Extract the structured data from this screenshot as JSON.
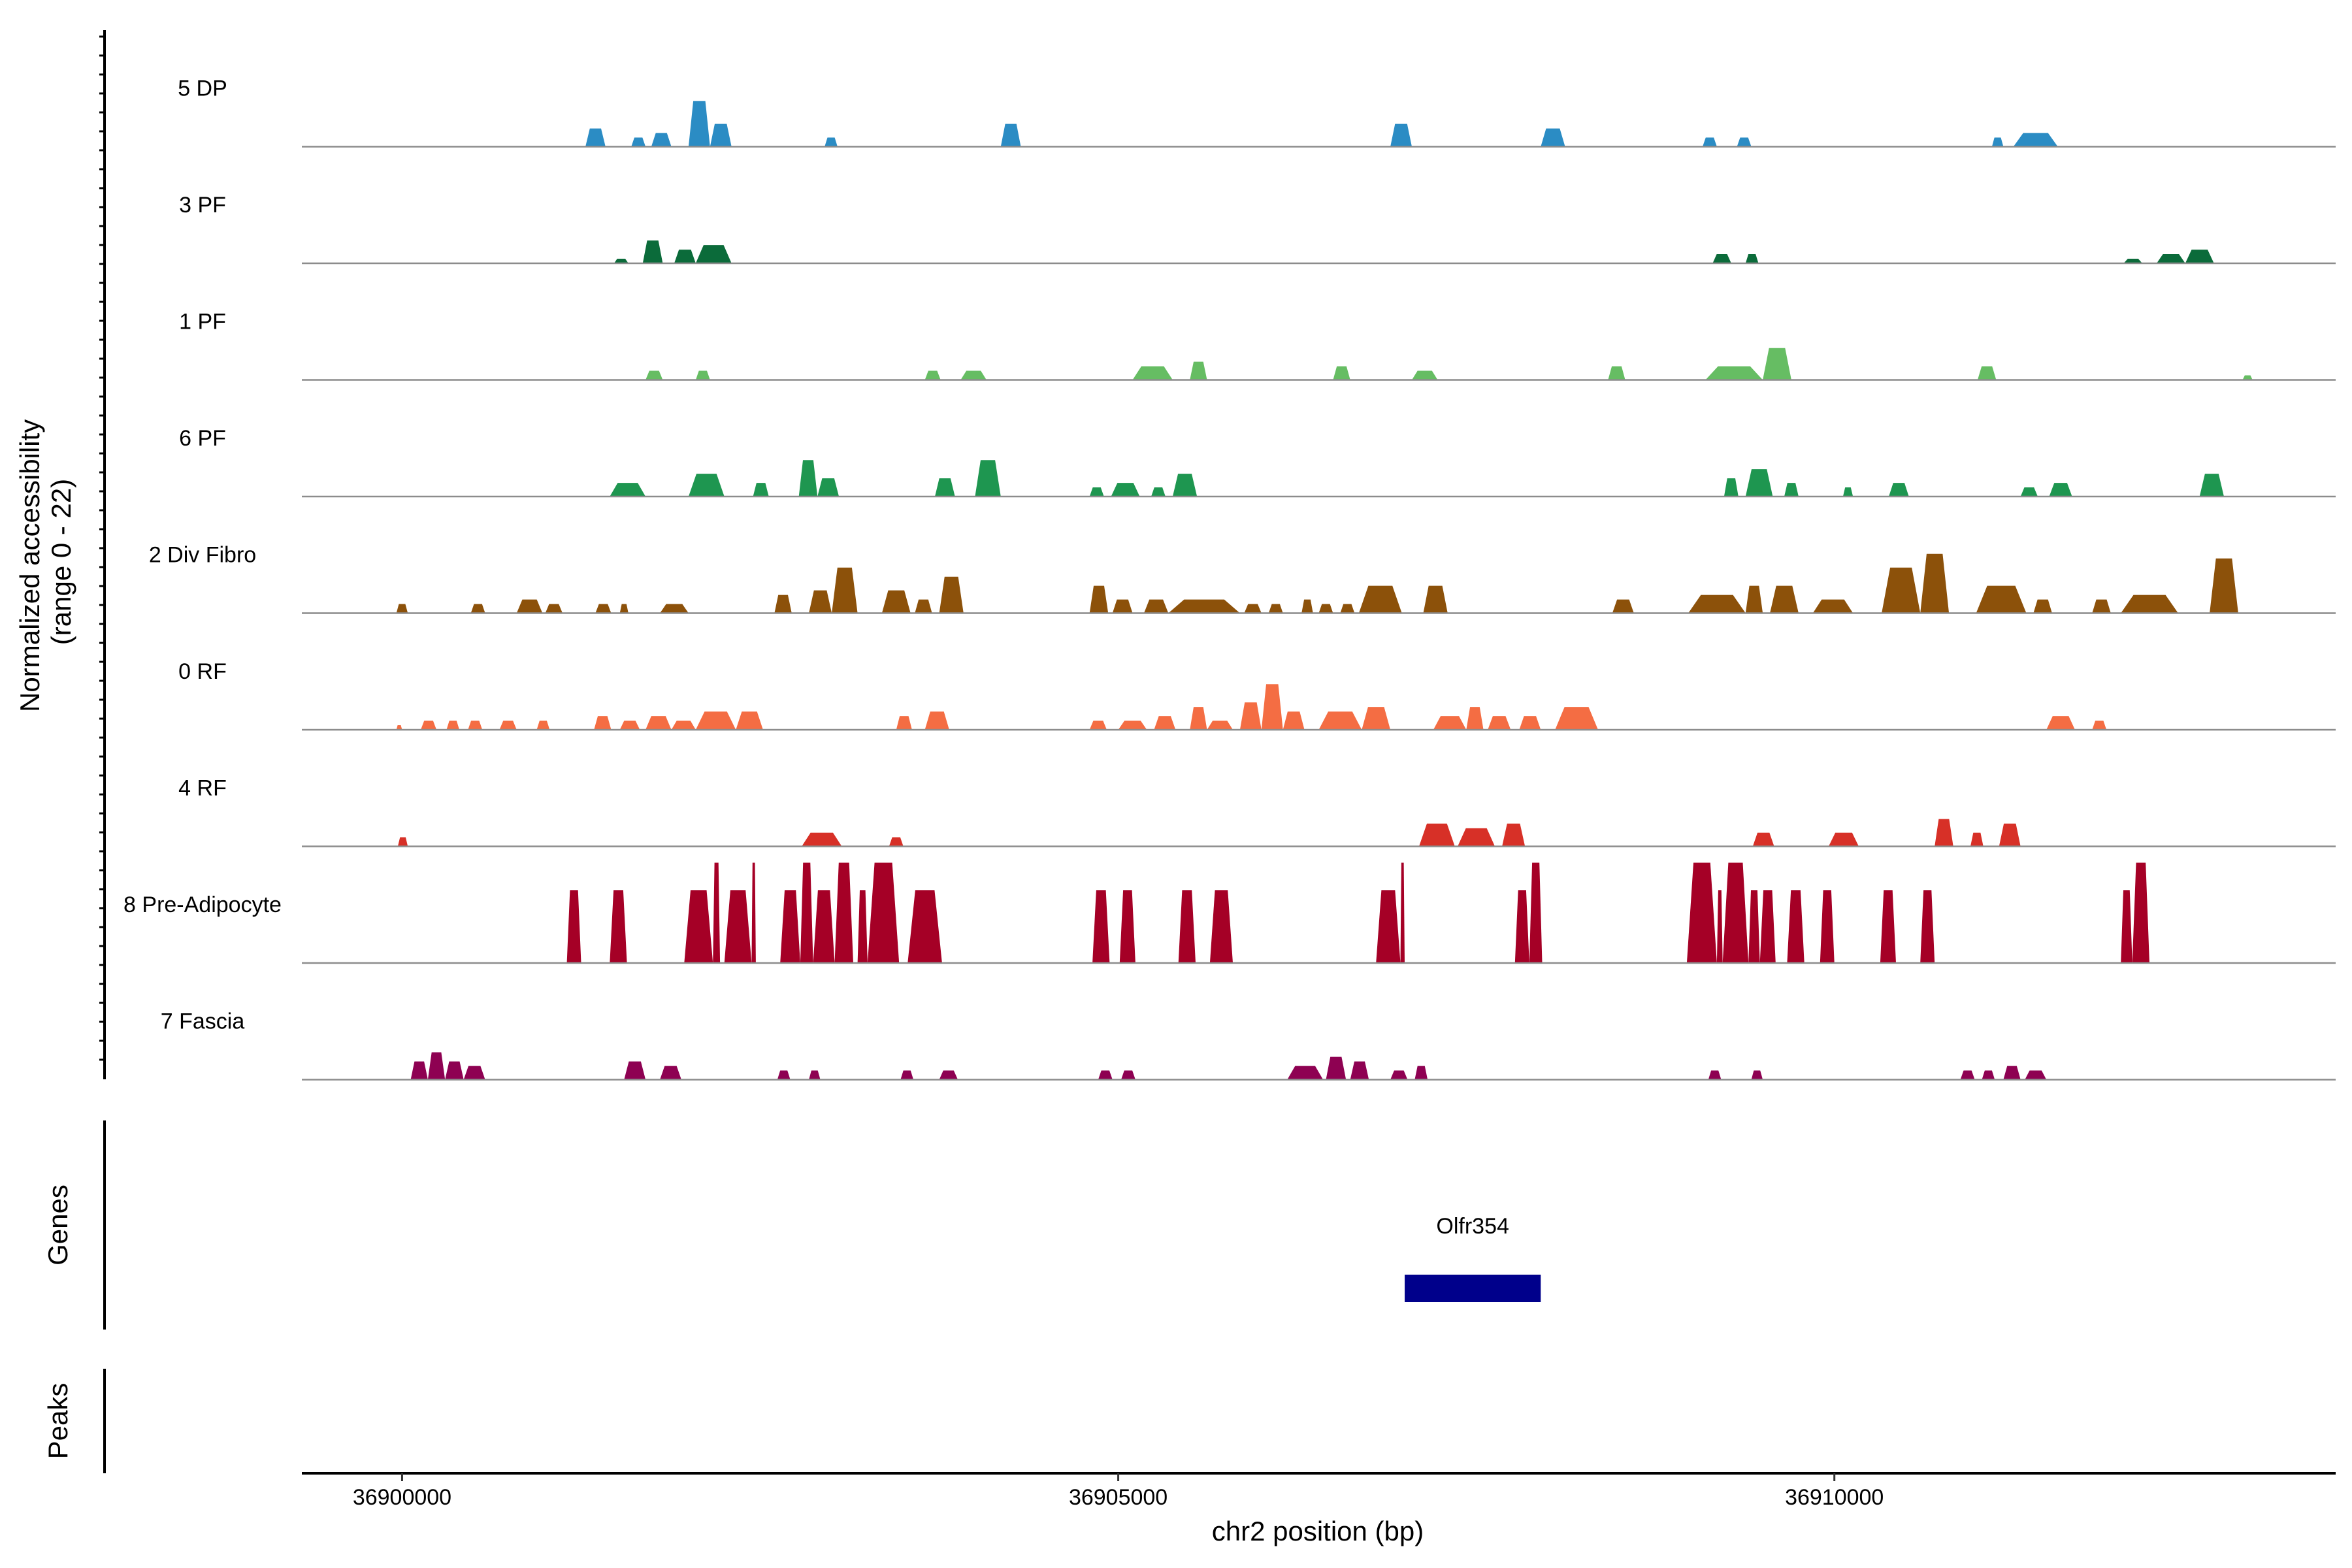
{
  "chart_data": {
    "type": "area",
    "title": "",
    "xlabel": "chr2 position (bp)",
    "ylabel_line1": "Normalized accessibility",
    "ylabel_line2": "(range 0 - 22)",
    "xlim": [
      36899300,
      36913500
    ],
    "ylim": [
      0,
      22
    ],
    "xticks": [
      {
        "value": 36900000,
        "label": "36900000"
      },
      {
        "value": 36905000,
        "label": "36905000"
      },
      {
        "value": 36910000,
        "label": "36910000"
      }
    ],
    "series": [
      {
        "name": "5 DP",
        "color": "#2b8cc4",
        "peaks": [
          [
            36901280,
            36901420,
            4
          ],
          [
            36901600,
            36901700,
            2
          ],
          [
            36901740,
            36901880,
            3
          ],
          [
            36902000,
            36902150,
            10
          ],
          [
            36902150,
            36902300,
            5
          ],
          [
            36902950,
            36903040,
            2
          ],
          [
            36904180,
            36904320,
            5
          ],
          [
            36906900,
            36907050,
            5
          ],
          [
            36907950,
            36908120,
            4
          ],
          [
            36909080,
            36909180,
            2
          ],
          [
            36909320,
            36909420,
            2
          ],
          [
            36911100,
            36911180,
            2
          ],
          [
            36911250,
            36911560,
            3
          ]
        ]
      },
      {
        "name": "3 PF",
        "color": "#0b6b3a",
        "peaks": [
          [
            36901480,
            36901580,
            1
          ],
          [
            36901680,
            36901820,
            5
          ],
          [
            36901900,
            36902050,
            3
          ],
          [
            36902050,
            36902300,
            4
          ],
          [
            36909150,
            36909280,
            2
          ],
          [
            36909380,
            36909470,
            2
          ],
          [
            36912020,
            36912150,
            1
          ],
          [
            36912250,
            36912450,
            2
          ],
          [
            36912450,
            36912650,
            3
          ]
        ]
      },
      {
        "name": "1 PF",
        "color": "#66bd63",
        "peaks": [
          [
            36901700,
            36901820,
            2
          ],
          [
            36902050,
            36902150,
            2
          ],
          [
            36903650,
            36903760,
            2
          ],
          [
            36903900,
            36904080,
            2
          ],
          [
            36905100,
            36905380,
            3
          ],
          [
            36905500,
            36905620,
            4
          ],
          [
            36906500,
            36906620,
            3
          ],
          [
            36907050,
            36907230,
            2
          ],
          [
            36908420,
            36908540,
            3
          ],
          [
            36909100,
            36909500,
            3
          ],
          [
            36909500,
            36909700,
            7
          ],
          [
            36911000,
            36911130,
            3
          ],
          [
            36912850,
            36912920,
            1
          ]
        ]
      },
      {
        "name": "6 PF",
        "color": "#1e9650",
        "peaks": [
          [
            36901450,
            36901700,
            3
          ],
          [
            36902000,
            36902250,
            5
          ],
          [
            36902450,
            36902560,
            3
          ],
          [
            36902770,
            36902900,
            8
          ],
          [
            36902900,
            36903050,
            4
          ],
          [
            36903720,
            36903860,
            4
          ],
          [
            36904000,
            36904180,
            8
          ],
          [
            36904800,
            36904900,
            2
          ],
          [
            36904950,
            36905150,
            3
          ],
          [
            36905230,
            36905330,
            2
          ],
          [
            36905380,
            36905550,
            5
          ],
          [
            36909230,
            36909330,
            4
          ],
          [
            36909380,
            36909570,
            6
          ],
          [
            36909650,
            36909750,
            3
          ],
          [
            36910060,
            36910130,
            2
          ],
          [
            36910380,
            36910520,
            3
          ],
          [
            36911300,
            36911420,
            2
          ],
          [
            36911500,
            36911660,
            3
          ],
          [
            36912550,
            36912720,
            5
          ]
        ]
      },
      {
        "name": "2 Div Fibro",
        "color": "#8c510a",
        "peaks": [
          [
            36899960,
            36900040,
            2
          ],
          [
            36900480,
            36900580,
            2
          ],
          [
            36900800,
            36900980,
            3
          ],
          [
            36901000,
            36901120,
            2
          ],
          [
            36901350,
            36901460,
            2
          ],
          [
            36901520,
            36901580,
            2
          ],
          [
            36901800,
            36902000,
            2
          ],
          [
            36902600,
            36902720,
            4
          ],
          [
            36902840,
            36903000,
            5
          ],
          [
            36903000,
            36903180,
            10
          ],
          [
            36903350,
            36903550,
            5
          ],
          [
            36903580,
            36903700,
            3
          ],
          [
            36903750,
            36903920,
            8
          ],
          [
            36904800,
            36904930,
            6
          ],
          [
            36904960,
            36905100,
            3
          ],
          [
            36905180,
            36905350,
            3
          ],
          [
            36905350,
            36905850,
            3
          ],
          [
            36905880,
            36906000,
            2
          ],
          [
            36906050,
            36906150,
            2
          ],
          [
            36906280,
            36906360,
            3
          ],
          [
            36906400,
            36906500,
            2
          ],
          [
            36906550,
            36906650,
            2
          ],
          [
            36906680,
            36906980,
            6
          ],
          [
            36907130,
            36907300,
            6
          ],
          [
            36908450,
            36908600,
            3
          ],
          [
            36908980,
            36909380,
            4
          ],
          [
            36909380,
            36909500,
            6
          ],
          [
            36909550,
            36909750,
            6
          ],
          [
            36909850,
            36910130,
            3
          ],
          [
            36910330,
            36910600,
            10
          ],
          [
            36910600,
            36910800,
            13
          ],
          [
            36910990,
            36911340,
            6
          ],
          [
            36911390,
            36911520,
            3
          ],
          [
            36911800,
            36911930,
            3
          ],
          [
            36912000,
            36912400,
            4
          ],
          [
            36912620,
            36912820,
            12
          ]
        ]
      },
      {
        "name": "0 RF",
        "color": "#f46d43",
        "peaks": [
          [
            36899960,
            36900000,
            1
          ],
          [
            36900130,
            36900240,
            2
          ],
          [
            36900310,
            36900400,
            2
          ],
          [
            36900460,
            36900560,
            2
          ],
          [
            36900680,
            36900800,
            2
          ],
          [
            36900940,
            36901030,
            2
          ],
          [
            36901340,
            36901460,
            3
          ],
          [
            36901520,
            36901660,
            2
          ],
          [
            36901700,
            36901880,
            3
          ],
          [
            36901880,
            36902050,
            2
          ],
          [
            36902050,
            36902330,
            4
          ],
          [
            36902330,
            36902520,
            4
          ],
          [
            36903450,
            36903560,
            3
          ],
          [
            36903650,
            36903820,
            4
          ],
          [
            36904800,
            36904920,
            2
          ],
          [
            36905000,
            36905200,
            2
          ],
          [
            36905250,
            36905400,
            3
          ],
          [
            36905500,
            36905620,
            5
          ],
          [
            36905620,
            36905800,
            2
          ],
          [
            36905850,
            36906000,
            6
          ],
          [
            36906000,
            36906150,
            10
          ],
          [
            36906150,
            36906300,
            4
          ],
          [
            36906400,
            36906700,
            4
          ],
          [
            36906700,
            36906900,
            5
          ],
          [
            36907200,
            36907430,
            3
          ],
          [
            36907430,
            36907550,
            5
          ],
          [
            36907580,
            36907740,
            3
          ],
          [
            36907800,
            36907950,
            3
          ],
          [
            36908050,
            36908350,
            5
          ],
          [
            36911480,
            36911680,
            3
          ],
          [
            36911800,
            36911900,
            2
          ]
        ]
      },
      {
        "name": "4 RF",
        "color": "#d73027",
        "peaks": [
          [
            36899970,
            36900040,
            2
          ],
          [
            36902790,
            36903070,
            3
          ],
          [
            36903400,
            36903500,
            2
          ],
          [
            36907100,
            36907350,
            5
          ],
          [
            36907370,
            36907630,
            4
          ],
          [
            36907680,
            36907840,
            5
          ],
          [
            36909430,
            36909580,
            3
          ],
          [
            36909960,
            36910170,
            3
          ],
          [
            36910700,
            36910830,
            6
          ],
          [
            36910950,
            36911040,
            3
          ],
          [
            36911150,
            36911300,
            5
          ]
        ]
      },
      {
        "name": "8 Pre-Adipocyte",
        "color": "#a50026",
        "peaks": [
          [
            36901150,
            36901250,
            16
          ],
          [
            36901450,
            36901570,
            16
          ],
          [
            36901970,
            36902170,
            16
          ],
          [
            36902170,
            36902220,
            22
          ],
          [
            36902250,
            36902440,
            16
          ],
          [
            36902440,
            36902470,
            22
          ],
          [
            36902640,
            36902780,
            16
          ],
          [
            36902780,
            36902870,
            22
          ],
          [
            36902870,
            36903020,
            16
          ],
          [
            36903020,
            36903150,
            22
          ],
          [
            36903180,
            36903250,
            16
          ],
          [
            36903250,
            36903470,
            22
          ],
          [
            36903530,
            36903770,
            16
          ],
          [
            36904820,
            36904940,
            16
          ],
          [
            36905010,
            36905120,
            16
          ],
          [
            36905420,
            36905540,
            16
          ],
          [
            36905640,
            36905800,
            16
          ],
          [
            36906800,
            36906970,
            16
          ],
          [
            36906970,
            36907000,
            22
          ],
          [
            36907770,
            36907870,
            16
          ],
          [
            36907870,
            36907960,
            22
          ],
          [
            36908970,
            36909180,
            22
          ],
          [
            36909180,
            36909220,
            16
          ],
          [
            36909220,
            36909400,
            22
          ],
          [
            36909400,
            36909480,
            16
          ],
          [
            36909480,
            36909590,
            16
          ],
          [
            36909670,
            36909790,
            16
          ],
          [
            36909900,
            36910000,
            16
          ],
          [
            36910320,
            36910430,
            16
          ],
          [
            36910600,
            36910700,
            16
          ],
          [
            36912000,
            36912080,
            16
          ],
          [
            36912080,
            36912200,
            22
          ]
        ]
      },
      {
        "name": "7 Fascia",
        "color": "#8e0152",
        "peaks": [
          [
            36900060,
            36900180,
            4
          ],
          [
            36900180,
            36900300,
            6
          ],
          [
            36900300,
            36900430,
            4
          ],
          [
            36900430,
            36900580,
            3
          ],
          [
            36901550,
            36901700,
            4
          ],
          [
            36901800,
            36901950,
            3
          ],
          [
            36902620,
            36902710,
            2
          ],
          [
            36902840,
            36902920,
            2
          ],
          [
            36903480,
            36903570,
            2
          ],
          [
            36903750,
            36903880,
            2
          ],
          [
            36904860,
            36904960,
            2
          ],
          [
            36905020,
            36905120,
            2
          ],
          [
            36906180,
            36906430,
            3
          ],
          [
            36906450,
            36906590,
            5
          ],
          [
            36906620,
            36906750,
            4
          ],
          [
            36906900,
            36907020,
            2
          ],
          [
            36907070,
            36907160,
            3
          ],
          [
            36909120,
            36909210,
            2
          ],
          [
            36909420,
            36909500,
            2
          ],
          [
            36910880,
            36910980,
            2
          ],
          [
            36911030,
            36911120,
            2
          ],
          [
            36911180,
            36911300,
            3
          ],
          [
            36911330,
            36911480,
            2
          ]
        ]
      }
    ]
  },
  "genes_panel": {
    "label": "Genes",
    "genes": [
      {
        "name": "Olfr354",
        "start": 36907000,
        "end": 36907950,
        "color": "#00008b"
      }
    ]
  },
  "peaks_panel": {
    "label": "Peaks"
  }
}
